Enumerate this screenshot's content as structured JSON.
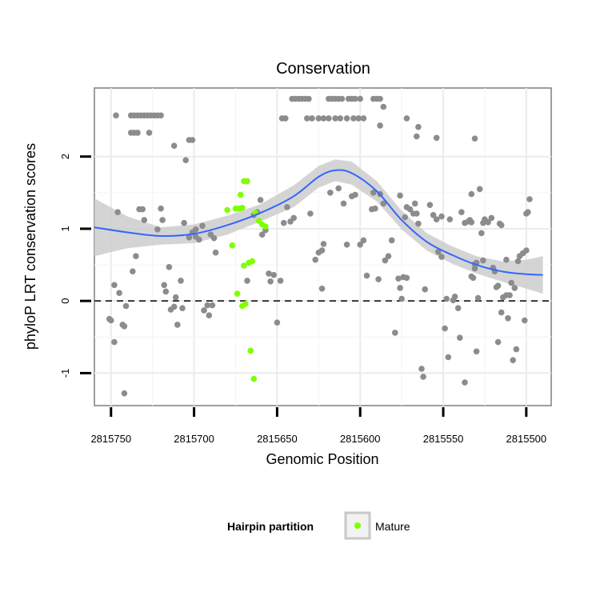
{
  "chart_data": {
    "type": "scatter",
    "title": "Conservation",
    "xlabel": "Genomic Position",
    "ylabel": "phyloP LRT conservation scores",
    "x_reversed": true,
    "xlim": [
      2815760,
      2815485
    ],
    "ylim": [
      -1.45,
      2.95
    ],
    "x_ticks": [
      2815750,
      2815700,
      2815650,
      2815600,
      2815550,
      2815500
    ],
    "x_tick_labels": [
      "2815750",
      "2815700",
      "2815650",
      "2815600",
      "2815550",
      "2815500"
    ],
    "y_ticks": [
      -1,
      0,
      1,
      2
    ],
    "y_tick_labels": [
      "-1",
      "0",
      "1",
      "2"
    ],
    "reference_line": {
      "y": 0,
      "style": "dashed"
    },
    "legend": {
      "title": "Hairpin partition",
      "entries": [
        {
          "label": "Mature",
          "color": "#7fff00"
        }
      ]
    },
    "colors": {
      "other": "#8c8c8c",
      "mature": "#7fff00",
      "smooth": "#3366ff",
      "band": "#cccccc"
    },
    "series": [
      {
        "name": "Other",
        "points": [
          [
            2815751,
            -0.25
          ],
          [
            2815750,
            -0.27
          ],
          [
            2815748,
            -0.57
          ],
          [
            2815748,
            0.22
          ],
          [
            2815746,
            1.23
          ],
          [
            2815745,
            0.11
          ],
          [
            2815743,
            -0.33
          ],
          [
            2815742,
            -0.35
          ],
          [
            2815742,
            -1.28
          ],
          [
            2815741,
            -0.07
          ],
          [
            2815747,
            2.57
          ],
          [
            2815738,
            2.57
          ],
          [
            2815736,
            2.57
          ],
          [
            2815734,
            2.57
          ],
          [
            2815732,
            2.57
          ],
          [
            2815730,
            2.57
          ],
          [
            2815728,
            2.57
          ],
          [
            2815726,
            2.57
          ],
          [
            2815724,
            2.57
          ],
          [
            2815722,
            2.57
          ],
          [
            2815720,
            2.57
          ],
          [
            2815738,
            2.33
          ],
          [
            2815736,
            2.33
          ],
          [
            2815734,
            2.33
          ],
          [
            2815727,
            2.33
          ],
          [
            2815737,
            0.41
          ],
          [
            2815735,
            0.62
          ],
          [
            2815733,
            1.27
          ],
          [
            2815731,
            1.27
          ],
          [
            2815730,
            1.12
          ],
          [
            2815722,
            0.99
          ],
          [
            2815720,
            1.28
          ],
          [
            2815719,
            1.12
          ],
          [
            2815718,
            0.22
          ],
          [
            2815717,
            0.13
          ],
          [
            2815715,
            0.47
          ],
          [
            2815714,
            -0.12
          ],
          [
            2815712,
            -0.08
          ],
          [
            2815711,
            0.05
          ],
          [
            2815710,
            -0.33
          ],
          [
            2815708,
            0.28
          ],
          [
            2815707,
            -0.1
          ],
          [
            2815712,
            2.15
          ],
          [
            2815705,
            1.95
          ],
          [
            2815703,
            2.23
          ],
          [
            2815701,
            2.23
          ],
          [
            2815706,
            1.08
          ],
          [
            2815703,
            0.88
          ],
          [
            2815701,
            0.95
          ],
          [
            2815699,
            0.89
          ],
          [
            2815697,
            0.85
          ],
          [
            2815695,
            1.04
          ],
          [
            2815694,
            -0.13
          ],
          [
            2815692,
            -0.06
          ],
          [
            2815691,
            -0.2
          ],
          [
            2815689,
            -0.06
          ],
          [
            2815688,
            0.87
          ],
          [
            2815687,
            0.67
          ],
          [
            2815699,
            0.99
          ],
          [
            2815690,
            0.92
          ],
          [
            2815668,
            0.28
          ],
          [
            2815664,
            1.19
          ],
          [
            2815662,
            1.23
          ],
          [
            2815660,
            1.4
          ],
          [
            2815659,
            0.92
          ],
          [
            2815657,
            0.98
          ],
          [
            2815655,
            0.38
          ],
          [
            2815654,
            0.27
          ],
          [
            2815652,
            0.36
          ],
          [
            2815650,
            -0.3
          ],
          [
            2815648,
            0.28
          ],
          [
            2815646,
            1.08
          ],
          [
            2815644,
            1.3
          ],
          [
            2815642,
            1.1
          ],
          [
            2815640,
            1.15
          ],
          [
            2815647,
            2.53
          ],
          [
            2815645,
            2.53
          ],
          [
            2815632,
            2.53
          ],
          [
            2815629,
            2.53
          ],
          [
            2815625,
            2.53
          ],
          [
            2815622,
            2.53
          ],
          [
            2815619,
            2.53
          ],
          [
            2815615,
            2.53
          ],
          [
            2815612,
            2.53
          ],
          [
            2815608,
            2.53
          ],
          [
            2815604,
            2.53
          ],
          [
            2815601,
            2.53
          ],
          [
            2815598,
            2.53
          ],
          [
            2815641,
            2.8
          ],
          [
            2815639,
            2.8
          ],
          [
            2815637,
            2.8
          ],
          [
            2815635,
            2.8
          ],
          [
            2815633,
            2.8
          ],
          [
            2815631,
            2.8
          ],
          [
            2815619,
            2.8
          ],
          [
            2815617,
            2.8
          ],
          [
            2815615,
            2.8
          ],
          [
            2815613,
            2.8
          ],
          [
            2815611,
            2.8
          ],
          [
            2815607,
            2.8
          ],
          [
            2815605,
            2.8
          ],
          [
            2815603,
            2.8
          ],
          [
            2815600,
            2.8
          ],
          [
            2815592,
            2.8
          ],
          [
            2815590,
            2.8
          ],
          [
            2815588,
            2.8
          ],
          [
            2815586,
            2.69
          ],
          [
            2815588,
            2.43
          ],
          [
            2815572,
            2.53
          ],
          [
            2815566,
            2.28
          ],
          [
            2815565,
            2.41
          ],
          [
            2815554,
            2.26
          ],
          [
            2815533,
            1.48
          ],
          [
            2815531,
            2.25
          ],
          [
            2815630,
            1.21
          ],
          [
            2815627,
            0.57
          ],
          [
            2815625,
            0.67
          ],
          [
            2815623,
            0.7
          ],
          [
            2815622,
            0.79
          ],
          [
            2815623,
            0.17
          ],
          [
            2815618,
            1.5
          ],
          [
            2815613,
            1.56
          ],
          [
            2815610,
            1.35
          ],
          [
            2815608,
            0.78
          ],
          [
            2815605,
            1.45
          ],
          [
            2815603,
            1.47
          ],
          [
            2815600,
            0.78
          ],
          [
            2815598,
            0.84
          ],
          [
            2815596,
            0.35
          ],
          [
            2815593,
            1.27
          ],
          [
            2815591,
            1.28
          ],
          [
            2815588,
            1.48
          ],
          [
            2815586,
            1.35
          ],
          [
            2815585,
            0.56
          ],
          [
            2815583,
            0.62
          ],
          [
            2815581,
            0.84
          ],
          [
            2815579,
            -0.44
          ],
          [
            2815577,
            0.31
          ],
          [
            2815576,
            0.18
          ],
          [
            2815575,
            0.03
          ],
          [
            2815574,
            0.33
          ],
          [
            2815572,
            0.32
          ],
          [
            2815570,
            1.27
          ],
          [
            2815568,
            1.21
          ],
          [
            2815567,
            1.35
          ],
          [
            2815566,
            1.21
          ],
          [
            2815565,
            1.07
          ],
          [
            2815563,
            -0.94
          ],
          [
            2815562,
            -1.05
          ],
          [
            2815561,
            0.16
          ],
          [
            2815558,
            1.33
          ],
          [
            2815556,
            1.19
          ],
          [
            2815554,
            1.13
          ],
          [
            2815553,
            0.68
          ],
          [
            2815551,
            0.61
          ],
          [
            2815549,
            -0.38
          ],
          [
            2815548,
            0.03
          ],
          [
            2815547,
            -0.78
          ],
          [
            2815546,
            1.13
          ],
          [
            2815544,
            0.01
          ],
          [
            2815543,
            0.06
          ],
          [
            2815541,
            -0.1
          ],
          [
            2815540,
            -0.51
          ],
          [
            2815539,
            1.23
          ],
          [
            2815537,
            1.08
          ],
          [
            2815537,
            -1.13
          ],
          [
            2815533,
            0.34
          ],
          [
            2815532,
            0.32
          ],
          [
            2815531,
            0.45
          ],
          [
            2815531,
            0.51
          ],
          [
            2815530,
            0.53
          ],
          [
            2815529,
            0.04
          ],
          [
            2815526,
            1.08
          ],
          [
            2815525,
            1.13
          ],
          [
            2815523,
            1.09
          ],
          [
            2815521,
            1.15
          ],
          [
            2815520,
            0.46
          ],
          [
            2815519,
            0.41
          ],
          [
            2815518,
            0.19
          ],
          [
            2815517,
            0.21
          ],
          [
            2815517,
            -0.57
          ],
          [
            2815515,
            -0.16
          ],
          [
            2815514,
            0.05
          ],
          [
            2815512,
            0.08
          ],
          [
            2815511,
            -0.24
          ],
          [
            2815510,
            0.08
          ],
          [
            2815509,
            0.25
          ],
          [
            2815508,
            -0.82
          ],
          [
            2815507,
            0.18
          ],
          [
            2815506,
            -0.67
          ],
          [
            2815505,
            0.55
          ],
          [
            2815504,
            0.62
          ],
          [
            2815502,
            0.66
          ],
          [
            2815501,
            -0.27
          ],
          [
            2815500,
            0.7
          ],
          [
            2815500,
            1.21
          ],
          [
            2815499,
            1.23
          ],
          [
            2815498,
            1.41
          ],
          [
            2815516,
            1.07
          ],
          [
            2815515,
            1.05
          ],
          [
            2815535,
            1.1
          ],
          [
            2815534,
            1.12
          ],
          [
            2815533,
            1.09
          ],
          [
            2815527,
            0.94
          ],
          [
            2815526,
            0.56
          ],
          [
            2815512,
            0.57
          ],
          [
            2815528,
            1.55
          ],
          [
            2815530,
            -0.7
          ],
          [
            2815551,
            1.17
          ],
          [
            2815576,
            1.46
          ],
          [
            2815573,
            1.16
          ],
          [
            2815572,
            1.3
          ],
          [
            2815592,
            1.5
          ],
          [
            2815589,
            0.3
          ]
        ]
      },
      {
        "name": "Mature",
        "points": [
          [
            2815677,
            0.77
          ],
          [
            2815674,
            0.1
          ],
          [
            2815671,
            -0.07
          ],
          [
            2815669,
            -0.04
          ],
          [
            2815667,
            0.53
          ],
          [
            2815665,
            0.55
          ],
          [
            2815663,
            1.22
          ],
          [
            2815661,
            1.11
          ],
          [
            2815659,
            1.06
          ],
          [
            2815657,
            1.03
          ],
          [
            2815675,
            1.28
          ],
          [
            2815673,
            1.28
          ],
          [
            2815671,
            1.29
          ],
          [
            2815672,
            1.47
          ],
          [
            2815670,
            1.66
          ],
          [
            2815668,
            1.66
          ],
          [
            2815666,
            -0.69
          ],
          [
            2815664,
            -1.08
          ],
          [
            2815680,
            1.26
          ],
          [
            2815670,
            0.49
          ]
        ]
      }
    ],
    "smooth": {
      "x": [
        2815760,
        2815740,
        2815720,
        2815700,
        2815680,
        2815660,
        2815640,
        2815625,
        2815615,
        2815605,
        2815590,
        2815575,
        2815560,
        2815545,
        2815530,
        2815515,
        2815500,
        2815490
      ],
      "y": [
        1.02,
        0.95,
        0.9,
        0.93,
        1.05,
        1.22,
        1.45,
        1.72,
        1.81,
        1.77,
        1.52,
        1.12,
        0.82,
        0.64,
        0.5,
        0.41,
        0.37,
        0.36
      ],
      "lower": [
        0.62,
        0.73,
        0.78,
        0.8,
        0.92,
        1.1,
        1.3,
        1.57,
        1.66,
        1.61,
        1.38,
        0.99,
        0.7,
        0.52,
        0.38,
        0.27,
        0.17,
        0.1
      ],
      "upper": [
        1.42,
        1.17,
        1.02,
        1.06,
        1.18,
        1.34,
        1.6,
        1.87,
        1.96,
        1.93,
        1.66,
        1.25,
        0.94,
        0.76,
        0.62,
        0.55,
        0.57,
        0.62
      ]
    }
  }
}
